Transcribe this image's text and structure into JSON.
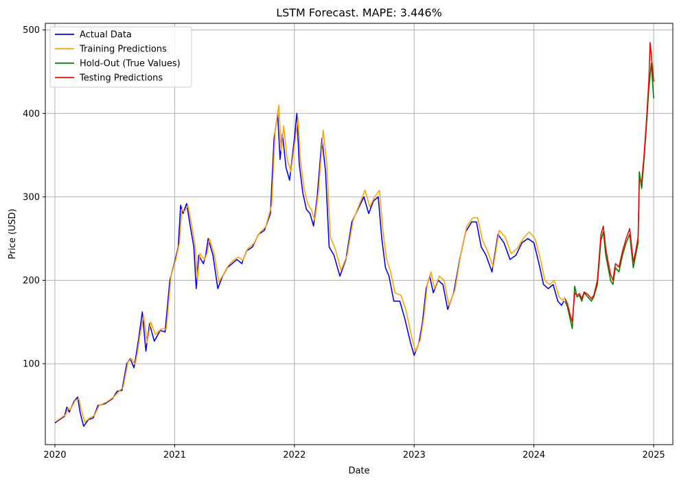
{
  "chart_data": {
    "type": "line",
    "title": "LSTM Forecast. MAPE: 3.446%",
    "xlabel": "Date",
    "ylabel": "Price (USD)",
    "xlim": [
      2019.92,
      2025.16
    ],
    "ylim": [
      3,
      508
    ],
    "x_ticks": [
      2020,
      2021,
      2022,
      2023,
      2024,
      2025
    ],
    "x_tick_labels": [
      "2020",
      "2021",
      "2022",
      "2023",
      "2024",
      "2025"
    ],
    "y_ticks": [
      100,
      200,
      300,
      400,
      500
    ],
    "y_tick_labels": [
      "100",
      "200",
      "300",
      "400",
      "500"
    ],
    "grid": true,
    "legend_position": "top-left",
    "series": [
      {
        "name": "Actual Data",
        "color": "#0000ff",
        "points": [
          [
            2020.0,
            29
          ],
          [
            2020.04,
            33
          ],
          [
            2020.08,
            37
          ],
          [
            2020.1,
            48
          ],
          [
            2020.12,
            42
          ],
          [
            2020.16,
            55
          ],
          [
            2020.19,
            60
          ],
          [
            2020.21,
            42
          ],
          [
            2020.24,
            25
          ],
          [
            2020.28,
            33
          ],
          [
            2020.32,
            35
          ],
          [
            2020.36,
            50
          ],
          [
            2020.42,
            52
          ],
          [
            2020.48,
            58
          ],
          [
            2020.52,
            67
          ],
          [
            2020.56,
            68
          ],
          [
            2020.6,
            100
          ],
          [
            2020.63,
            106
          ],
          [
            2020.66,
            95
          ],
          [
            2020.68,
            112
          ],
          [
            2020.7,
            131
          ],
          [
            2020.73,
            162
          ],
          [
            2020.76,
            115
          ],
          [
            2020.79,
            148
          ],
          [
            2020.83,
            127
          ],
          [
            2020.88,
            140
          ],
          [
            2020.92,
            138
          ],
          [
            2020.96,
            200
          ],
          [
            2021.0,
            222
          ],
          [
            2021.03,
            240
          ],
          [
            2021.05,
            290
          ],
          [
            2021.07,
            280
          ],
          [
            2021.1,
            292
          ],
          [
            2021.13,
            265
          ],
          [
            2021.16,
            240
          ],
          [
            2021.18,
            190
          ],
          [
            2021.2,
            230
          ],
          [
            2021.24,
            220
          ],
          [
            2021.26,
            230
          ],
          [
            2021.28,
            250
          ],
          [
            2021.32,
            230
          ],
          [
            2021.36,
            190
          ],
          [
            2021.4,
            205
          ],
          [
            2021.44,
            215
          ],
          [
            2021.48,
            220
          ],
          [
            2021.52,
            225
          ],
          [
            2021.56,
            220
          ],
          [
            2021.6,
            235
          ],
          [
            2021.65,
            240
          ],
          [
            2021.7,
            255
          ],
          [
            2021.75,
            260
          ],
          [
            2021.8,
            280
          ],
          [
            2021.83,
            370
          ],
          [
            2021.86,
            400
          ],
          [
            2021.88,
            345
          ],
          [
            2021.9,
            375
          ],
          [
            2021.93,
            335
          ],
          [
            2021.96,
            320
          ],
          [
            2022.0,
            370
          ],
          [
            2022.02,
            400
          ],
          [
            2022.04,
            340
          ],
          [
            2022.07,
            305
          ],
          [
            2022.1,
            285
          ],
          [
            2022.13,
            280
          ],
          [
            2022.16,
            265
          ],
          [
            2022.19,
            300
          ],
          [
            2022.23,
            370
          ],
          [
            2022.26,
            330
          ],
          [
            2022.29,
            240
          ],
          [
            2022.33,
            230
          ],
          [
            2022.38,
            205
          ],
          [
            2022.43,
            225
          ],
          [
            2022.48,
            270
          ],
          [
            2022.53,
            285
          ],
          [
            2022.58,
            300
          ],
          [
            2022.62,
            280
          ],
          [
            2022.66,
            295
          ],
          [
            2022.7,
            300
          ],
          [
            2022.73,
            250
          ],
          [
            2022.76,
            215
          ],
          [
            2022.79,
            205
          ],
          [
            2022.83,
            175
          ],
          [
            2022.88,
            175
          ],
          [
            2022.92,
            155
          ],
          [
            2022.97,
            125
          ],
          [
            2023.0,
            110
          ],
          [
            2023.04,
            125
          ],
          [
            2023.07,
            150
          ],
          [
            2023.1,
            190
          ],
          [
            2023.13,
            205
          ],
          [
            2023.16,
            185
          ],
          [
            2023.2,
            200
          ],
          [
            2023.24,
            195
          ],
          [
            2023.28,
            165
          ],
          [
            2023.33,
            185
          ],
          [
            2023.38,
            225
          ],
          [
            2023.43,
            258
          ],
          [
            2023.48,
            270
          ],
          [
            2023.52,
            270
          ],
          [
            2023.56,
            240
          ],
          [
            2023.6,
            230
          ],
          [
            2023.65,
            210
          ],
          [
            2023.7,
            255
          ],
          [
            2023.75,
            245
          ],
          [
            2023.8,
            225
          ],
          [
            2023.85,
            230
          ],
          [
            2023.9,
            245
          ],
          [
            2023.95,
            250
          ],
          [
            2024.0,
            245
          ],
          [
            2024.05,
            215
          ],
          [
            2024.08,
            195
          ],
          [
            2024.12,
            190
          ],
          [
            2024.16,
            195
          ],
          [
            2024.2,
            175
          ],
          [
            2024.23,
            170
          ],
          [
            2024.25,
            175
          ]
        ]
      },
      {
        "name": "Training Predictions",
        "color": "#ffa500",
        "points": [
          [
            2020.01,
            31
          ],
          [
            2020.05,
            35
          ],
          [
            2020.09,
            39
          ],
          [
            2020.11,
            47
          ],
          [
            2020.13,
            45
          ],
          [
            2020.17,
            56
          ],
          [
            2020.2,
            58
          ],
          [
            2020.22,
            45
          ],
          [
            2020.25,
            30
          ],
          [
            2020.29,
            35
          ],
          [
            2020.33,
            38
          ],
          [
            2020.37,
            50
          ],
          [
            2020.43,
            54
          ],
          [
            2020.49,
            60
          ],
          [
            2020.53,
            66
          ],
          [
            2020.57,
            72
          ],
          [
            2020.61,
            102
          ],
          [
            2020.64,
            106
          ],
          [
            2020.67,
            99
          ],
          [
            2020.69,
            114
          ],
          [
            2020.71,
            134
          ],
          [
            2020.74,
            158
          ],
          [
            2020.77,
            125
          ],
          [
            2020.8,
            150
          ],
          [
            2020.84,
            135
          ],
          [
            2020.89,
            142
          ],
          [
            2020.93,
            142
          ],
          [
            2020.97,
            205
          ],
          [
            2021.01,
            225
          ],
          [
            2021.04,
            245
          ],
          [
            2021.06,
            285
          ],
          [
            2021.08,
            282
          ],
          [
            2021.11,
            290
          ],
          [
            2021.14,
            268
          ],
          [
            2021.17,
            242
          ],
          [
            2021.19,
            200
          ],
          [
            2021.21,
            232
          ],
          [
            2021.25,
            225
          ],
          [
            2021.27,
            232
          ],
          [
            2021.29,
            250
          ],
          [
            2021.33,
            232
          ],
          [
            2021.37,
            198
          ],
          [
            2021.41,
            208
          ],
          [
            2021.45,
            218
          ],
          [
            2021.49,
            224
          ],
          [
            2021.53,
            228
          ],
          [
            2021.57,
            224
          ],
          [
            2021.61,
            238
          ],
          [
            2021.66,
            244
          ],
          [
            2021.71,
            257
          ],
          [
            2021.76,
            264
          ],
          [
            2021.81,
            290
          ],
          [
            2021.84,
            380
          ],
          [
            2021.87,
            410
          ],
          [
            2021.89,
            355
          ],
          [
            2021.91,
            385
          ],
          [
            2021.94,
            345
          ],
          [
            2021.97,
            330
          ],
          [
            2022.01,
            372
          ],
          [
            2022.03,
            395
          ],
          [
            2022.05,
            345
          ],
          [
            2022.08,
            310
          ],
          [
            2022.11,
            292
          ],
          [
            2022.14,
            285
          ],
          [
            2022.17,
            272
          ],
          [
            2022.2,
            305
          ],
          [
            2022.24,
            380
          ],
          [
            2022.27,
            340
          ],
          [
            2022.3,
            252
          ],
          [
            2022.34,
            238
          ],
          [
            2022.39,
            212
          ],
          [
            2022.44,
            230
          ],
          [
            2022.49,
            272
          ],
          [
            2022.54,
            290
          ],
          [
            2022.59,
            308
          ],
          [
            2022.63,
            288
          ],
          [
            2022.67,
            300
          ],
          [
            2022.71,
            308
          ],
          [
            2022.74,
            258
          ],
          [
            2022.77,
            225
          ],
          [
            2022.8,
            212
          ],
          [
            2022.84,
            185
          ],
          [
            2022.89,
            182
          ],
          [
            2022.93,
            165
          ],
          [
            2022.98,
            132
          ],
          [
            2023.01,
            115
          ],
          [
            2023.05,
            128
          ],
          [
            2023.08,
            155
          ],
          [
            2023.11,
            195
          ],
          [
            2023.14,
            210
          ],
          [
            2023.17,
            190
          ],
          [
            2023.21,
            205
          ],
          [
            2023.25,
            200
          ],
          [
            2023.29,
            170
          ],
          [
            2023.34,
            188
          ],
          [
            2023.39,
            232
          ],
          [
            2023.44,
            265
          ],
          [
            2023.49,
            275
          ],
          [
            2023.53,
            275
          ],
          [
            2023.57,
            248
          ],
          [
            2023.61,
            236
          ],
          [
            2023.66,
            216
          ],
          [
            2023.71,
            260
          ],
          [
            2023.76,
            252
          ],
          [
            2023.81,
            232
          ],
          [
            2023.86,
            238
          ],
          [
            2023.91,
            250
          ],
          [
            2023.96,
            258
          ],
          [
            2024.01,
            250
          ],
          [
            2024.06,
            222
          ],
          [
            2024.09,
            200
          ],
          [
            2024.13,
            195
          ],
          [
            2024.17,
            200
          ],
          [
            2024.21,
            180
          ],
          [
            2024.24,
            176
          ],
          [
            2024.26,
            180
          ]
        ]
      },
      {
        "name": "Hold-Out (True Values)",
        "color": "#008000",
        "points": [
          [
            2024.26,
            175
          ],
          [
            2024.28,
            168
          ],
          [
            2024.3,
            155
          ],
          [
            2024.32,
            142
          ],
          [
            2024.34,
            193
          ],
          [
            2024.36,
            180
          ],
          [
            2024.38,
            182
          ],
          [
            2024.4,
            175
          ],
          [
            2024.42,
            185
          ],
          [
            2024.45,
            180
          ],
          [
            2024.48,
            175
          ],
          [
            2024.5,
            180
          ],
          [
            2024.53,
            195
          ],
          [
            2024.56,
            248
          ],
          [
            2024.58,
            258
          ],
          [
            2024.6,
            230
          ],
          [
            2024.62,
            215
          ],
          [
            2024.64,
            200
          ],
          [
            2024.66,
            195
          ],
          [
            2024.68,
            215
          ],
          [
            2024.71,
            210
          ],
          [
            2024.74,
            230
          ],
          [
            2024.77,
            245
          ],
          [
            2024.8,
            255
          ],
          [
            2024.83,
            215
          ],
          [
            2024.85,
            230
          ],
          [
            2024.87,
            245
          ],
          [
            2024.88,
            330
          ],
          [
            2024.9,
            310
          ],
          [
            2024.92,
            345
          ],
          [
            2024.94,
            385
          ],
          [
            2024.96,
            430
          ],
          [
            2024.98,
            460
          ],
          [
            2025.0,
            418
          ]
        ]
      },
      {
        "name": "Testing Predictions",
        "color": "#ff0000",
        "points": [
          [
            2024.26,
            178
          ],
          [
            2024.28,
            172
          ],
          [
            2024.3,
            160
          ],
          [
            2024.32,
            150
          ],
          [
            2024.34,
            185
          ],
          [
            2024.36,
            182
          ],
          [
            2024.38,
            184
          ],
          [
            2024.4,
            178
          ],
          [
            2024.42,
            186
          ],
          [
            2024.45,
            183
          ],
          [
            2024.48,
            178
          ],
          [
            2024.5,
            182
          ],
          [
            2024.53,
            200
          ],
          [
            2024.56,
            255
          ],
          [
            2024.58,
            265
          ],
          [
            2024.6,
            238
          ],
          [
            2024.62,
            222
          ],
          [
            2024.64,
            207
          ],
          [
            2024.66,
            200
          ],
          [
            2024.68,
            220
          ],
          [
            2024.71,
            216
          ],
          [
            2024.74,
            235
          ],
          [
            2024.77,
            250
          ],
          [
            2024.8,
            262
          ],
          [
            2024.83,
            222
          ],
          [
            2024.85,
            235
          ],
          [
            2024.87,
            252
          ],
          [
            2024.88,
            320
          ],
          [
            2024.9,
            318
          ],
          [
            2024.92,
            350
          ],
          [
            2024.94,
            392
          ],
          [
            2024.96,
            440
          ],
          [
            2024.97,
            485
          ],
          [
            2024.99,
            455
          ],
          [
            2025.0,
            438
          ]
        ]
      }
    ]
  }
}
